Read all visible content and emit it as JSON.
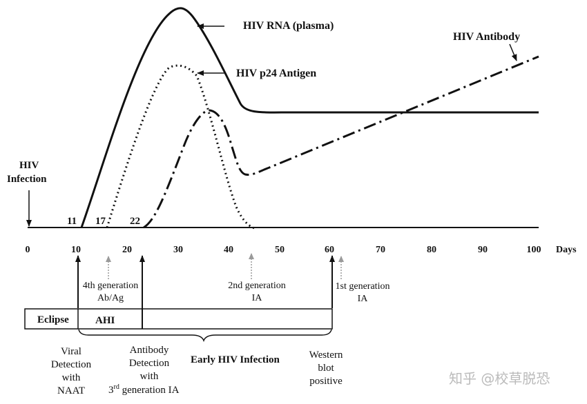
{
  "curves": {
    "rna": "HIV RNA (plasma)",
    "p24": "HIV p24 Antigen",
    "antibody": "HIV Antibody"
  },
  "infection": [
    "HIV",
    "Infection"
  ],
  "axis": {
    "unit": "Days",
    "ticks": [
      "0",
      "10",
      "20",
      "30",
      "40",
      "50",
      "60",
      "70",
      "80",
      "90",
      "100"
    ],
    "start_days": [
      "11",
      "17",
      "22"
    ]
  },
  "markers": {
    "fourth_gen": [
      "4th generation",
      "Ab/Ag"
    ],
    "second_gen": [
      "2nd generation",
      "IA"
    ],
    "first_gen": [
      "1st generation",
      "IA"
    ]
  },
  "phases": {
    "eclipse": "Eclipse",
    "ahi": "AHI",
    "early": "Early HIV Infection"
  },
  "bottom": {
    "viral": [
      "Viral",
      "Detection",
      "with",
      "NAAT"
    ],
    "antibody": [
      "Antibody",
      "Detection",
      "with"
    ],
    "antibody_last_sup": "rd",
    "antibody_last_pre": "3",
    "antibody_last_post": " generation IA",
    "western": [
      "Western",
      "blot",
      "positive"
    ]
  },
  "watermark": "知乎 @校草脱恐"
}
